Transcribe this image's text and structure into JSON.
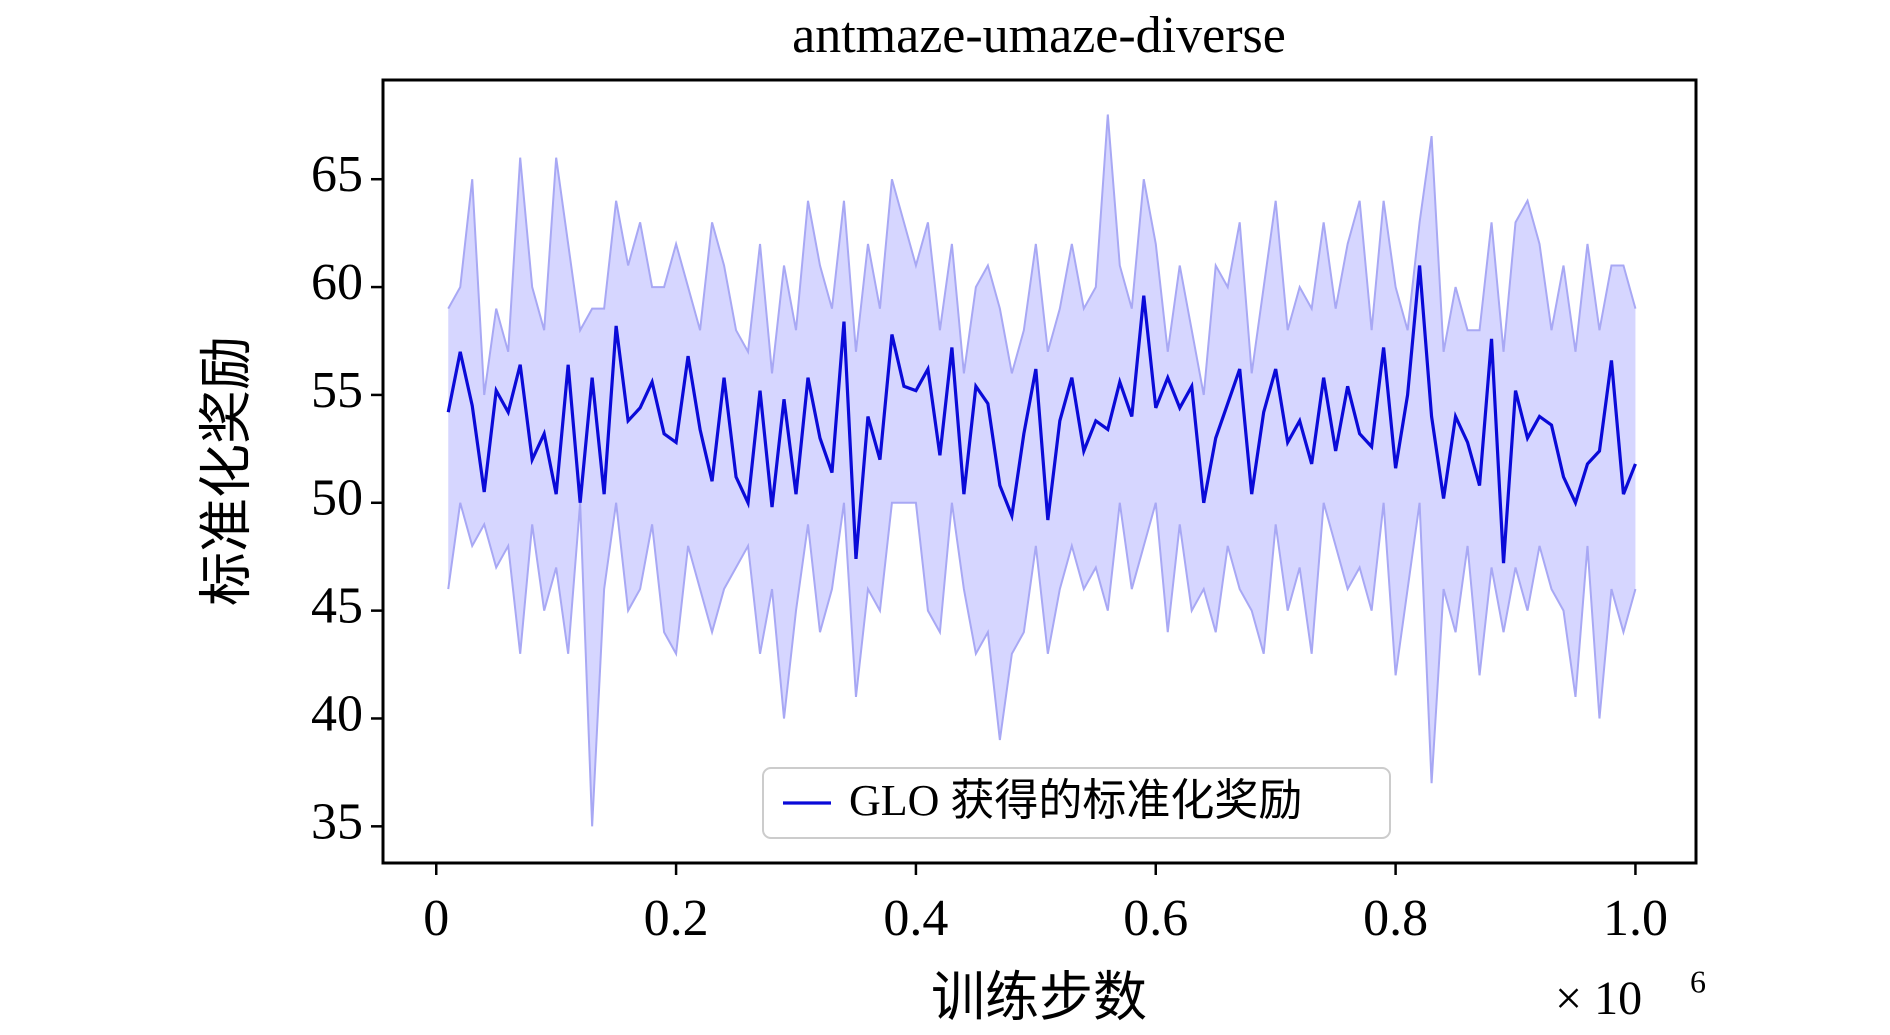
{
  "chart_data": {
    "type": "line",
    "title": "antmaze-umaze-diverse",
    "x_label": "训练步数",
    "y_label": "标准化奖励",
    "x_scale_label": "× 10",
    "x_scale_exponent": "6",
    "x": [
      0.01,
      0.02,
      0.03,
      0.04,
      0.05,
      0.06,
      0.07,
      0.08,
      0.09,
      0.1,
      0.11,
      0.12,
      0.13,
      0.14,
      0.15,
      0.16,
      0.17,
      0.18,
      0.19,
      0.2,
      0.21,
      0.22,
      0.23,
      0.24,
      0.25,
      0.26,
      0.27,
      0.28,
      0.29,
      0.3,
      0.31,
      0.32,
      0.33,
      0.34,
      0.35,
      0.36,
      0.37,
      0.38,
      0.39,
      0.4,
      0.41,
      0.42,
      0.43,
      0.44,
      0.45,
      0.46,
      0.47,
      0.48,
      0.49,
      0.5,
      0.51,
      0.52,
      0.53,
      0.54,
      0.55,
      0.56,
      0.57,
      0.58,
      0.59,
      0.6,
      0.61,
      0.62,
      0.63,
      0.64,
      0.65,
      0.66,
      0.67,
      0.68,
      0.69,
      0.7,
      0.71,
      0.72,
      0.73,
      0.74,
      0.75,
      0.76,
      0.77,
      0.78,
      0.79,
      0.8,
      0.81,
      0.82,
      0.83,
      0.84,
      0.85,
      0.86,
      0.87,
      0.88,
      0.89,
      0.9,
      0.91,
      0.92,
      0.93,
      0.94,
      0.95,
      0.96,
      0.97,
      0.98,
      0.99,
      1.0
    ],
    "series": [
      {
        "name": "GLO 获得的标准化奖励",
        "color": "#0a0ad8",
        "band_color": "#c8c8ff",
        "values": [
          54.2,
          57,
          54.5,
          50.5,
          55.2,
          54.2,
          56.4,
          52,
          53.2,
          50.4,
          56.4,
          50,
          55.8,
          50.4,
          58.2,
          53.8,
          54.4,
          55.6,
          53.2,
          52.8,
          56.8,
          53.4,
          51,
          55.8,
          51.2,
          50,
          55.2,
          49.8,
          54.8,
          50.4,
          55.8,
          53,
          51.4,
          58.4,
          47.4,
          54,
          52,
          57.8,
          55.4,
          55.2,
          56.2,
          52.2,
          57.2,
          50.4,
          55.4,
          54.6,
          50.8,
          49.4,
          53.2,
          56.2,
          49.2,
          53.8,
          55.8,
          52.4,
          53.8,
          53.4,
          55.6,
          54,
          59.6,
          54.4,
          55.8,
          54.4,
          55.4,
          50,
          53,
          54.6,
          56.2,
          50.4,
          54.2,
          56.2,
          52.8,
          53.8,
          51.8,
          55.8,
          52.4,
          55.4,
          53.2,
          52.6,
          57.2,
          51.6,
          55,
          61,
          54,
          50.2,
          54,
          52.8,
          50.8,
          57.6,
          47.2,
          55.2,
          53,
          54,
          53.6,
          51.2,
          50,
          51.8,
          52.4,
          56.6,
          50.4,
          51.8
        ],
        "lower": [
          46,
          50,
          48,
          49,
          47,
          48,
          43,
          49,
          45,
          47,
          43,
          50,
          35,
          46,
          50,
          45,
          46,
          49,
          44,
          43,
          48,
          46,
          44,
          46,
          47,
          48,
          43,
          46,
          40,
          45,
          49,
          44,
          46,
          50,
          41,
          46,
          45,
          50,
          50,
          50,
          45,
          44,
          50,
          46,
          43,
          44,
          39,
          43,
          44,
          48,
          43,
          46,
          48,
          46,
          47,
          45,
          50,
          46,
          48,
          50,
          44,
          49,
          45,
          46,
          44,
          48,
          46,
          45,
          43,
          49,
          45,
          47,
          43,
          50,
          48,
          46,
          47,
          45,
          50,
          42,
          46,
          50,
          37,
          46,
          44,
          48,
          42,
          47,
          44,
          47,
          45,
          48,
          46,
          45,
          41,
          48,
          40,
          46,
          44,
          46
        ],
        "upper": [
          59,
          60,
          65,
          55,
          59,
          57,
          66,
          60,
          58,
          66,
          62,
          58,
          59,
          59,
          64,
          61,
          63,
          60,
          60,
          62,
          60,
          58,
          63,
          61,
          58,
          57,
          62,
          56,
          61,
          58,
          64,
          61,
          59,
          64,
          57,
          62,
          59,
          65,
          63,
          61,
          63,
          58,
          62,
          56,
          60,
          61,
          59,
          56,
          58,
          62,
          57,
          59,
          62,
          59,
          60,
          68,
          61,
          59,
          65,
          62,
          57,
          61,
          58,
          55,
          61,
          60,
          63,
          56,
          60,
          64,
          58,
          60,
          59,
          63,
          59,
          62,
          64,
          58,
          64,
          60,
          58,
          63,
          67,
          57,
          60,
          58,
          58,
          63,
          57,
          63,
          64,
          62,
          58,
          61,
          57,
          62,
          58,
          61,
          61,
          59
        ]
      }
    ],
    "xlim": [
      -0.0444,
      1.0505
    ],
    "ylim": [
      33.3,
      69.6
    ],
    "xticks": [
      0,
      0.2,
      0.4,
      0.6,
      0.8,
      {
        "value": 1,
        "label": "1.0"
      }
    ],
    "yticks": [
      35,
      40,
      45,
      50,
      55,
      60,
      65
    ],
    "legend": "lower center"
  }
}
